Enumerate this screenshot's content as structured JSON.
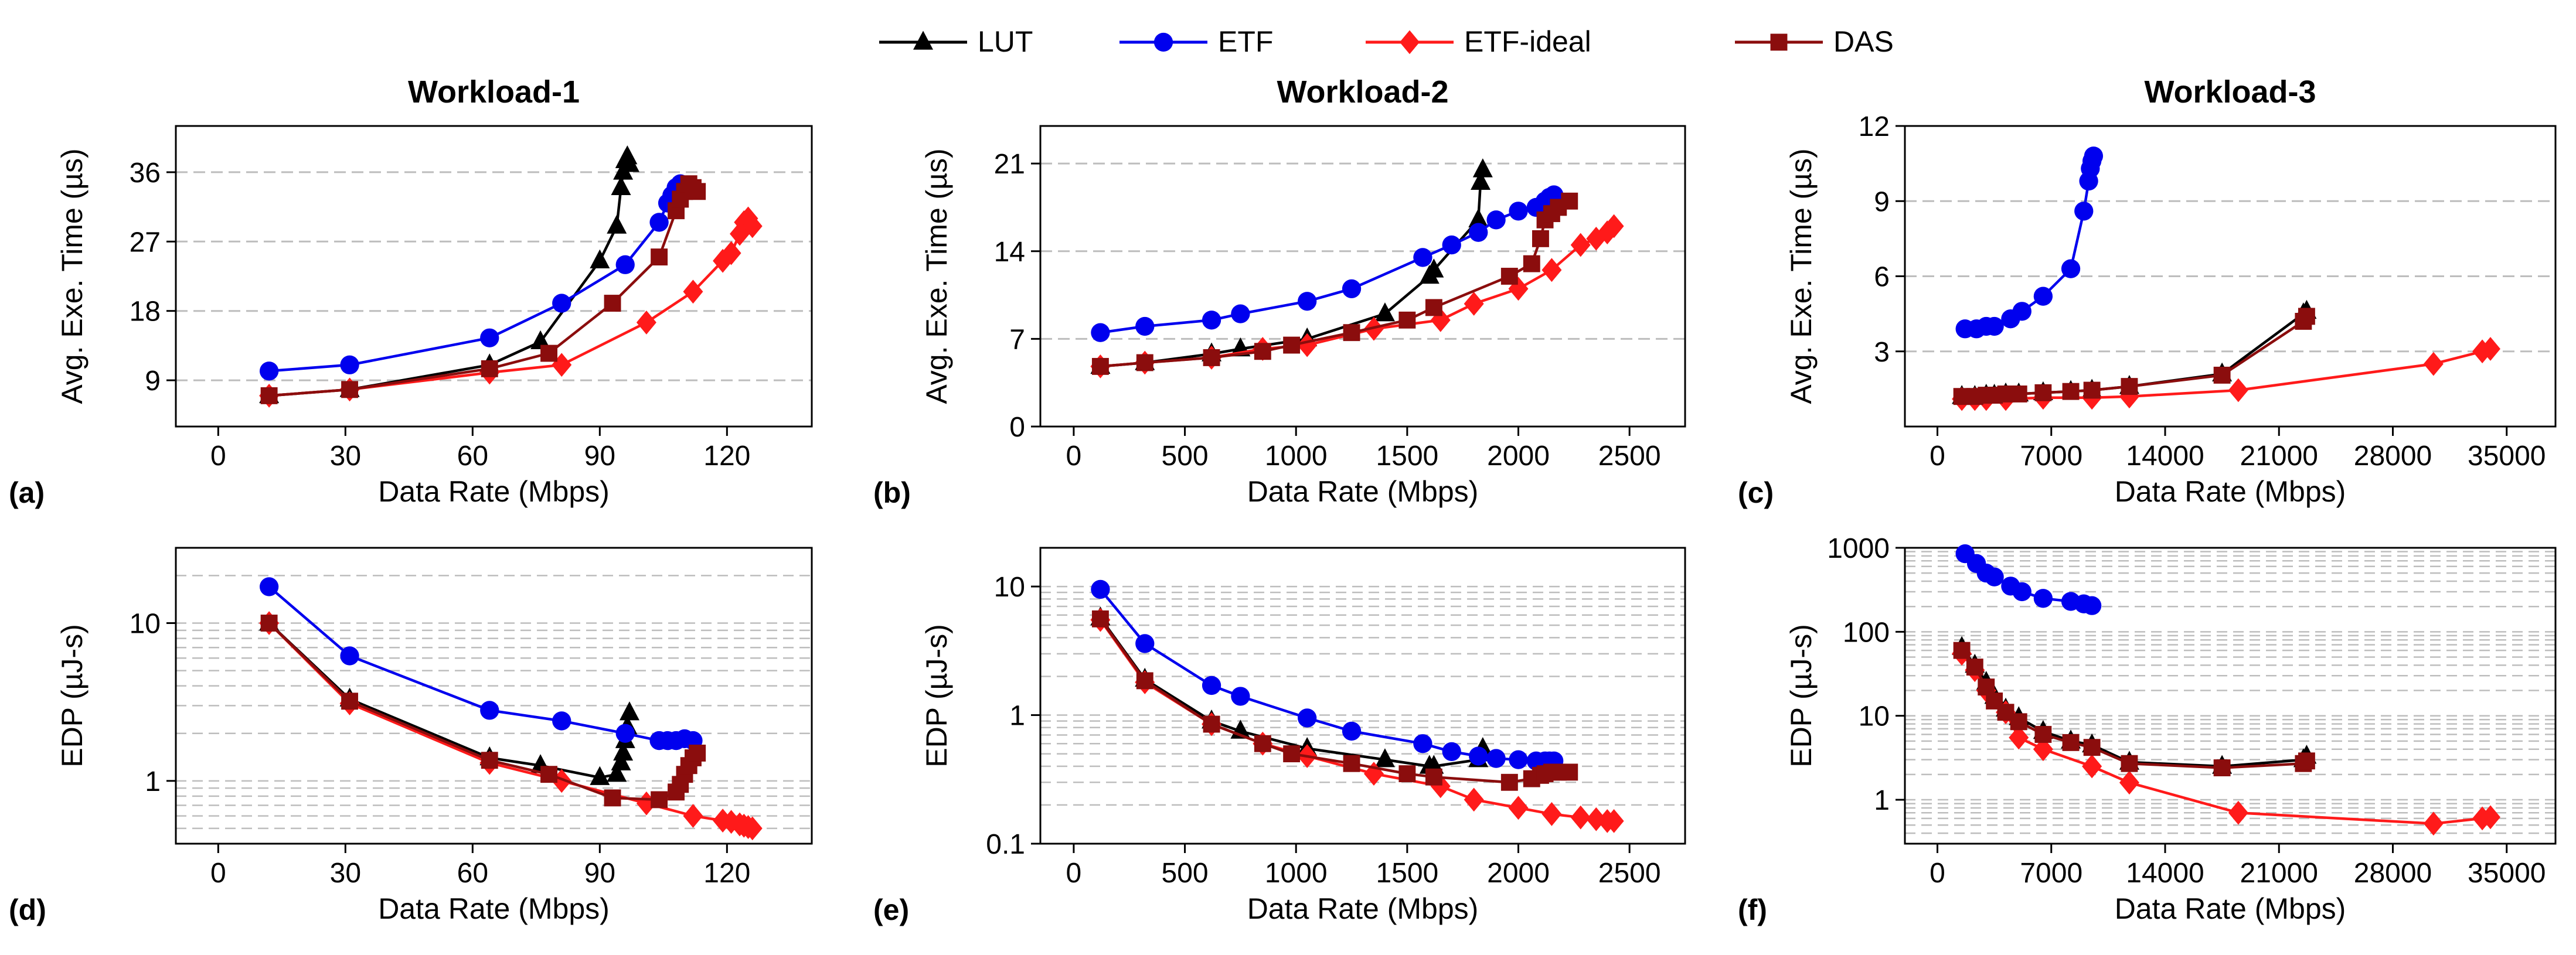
{
  "figure": {
    "legend": [
      {
        "name": "LUT",
        "color": "#000000",
        "marker": "triangle"
      },
      {
        "name": "ETF",
        "color": "#0000ee",
        "marker": "circle"
      },
      {
        "name": "ETF-ideal",
        "color": "#ff1a1a",
        "marker": "diamond"
      },
      {
        "name": "DAS",
        "color": "#8b0d0d",
        "marker": "square"
      }
    ],
    "column_titles": [
      "Workload-1",
      "Workload-2",
      "Workload-3"
    ],
    "panel_letters": [
      "(a)",
      "(b)",
      "(c)",
      "(d)",
      "(e)",
      "(f)"
    ]
  },
  "chart_data": [
    {
      "type": "line",
      "panel": "(a)",
      "title": "Workload-1",
      "xlabel": "Data Rate (Mbps)",
      "ylabel": "Avg. Exe. Time (µs)",
      "xlim": [
        -10,
        140
      ],
      "ylim": [
        3,
        42
      ],
      "yscale": "linear",
      "xticks": [
        0,
        30,
        60,
        90,
        120
      ],
      "yticks": [
        9,
        18,
        27,
        36
      ],
      "grid": "y-dashed",
      "series": [
        {
          "name": "LUT",
          "x": [
            12,
            31,
            64,
            76,
            90,
            94,
            95,
            95.5,
            96,
            96.5,
            97
          ],
          "y": [
            7,
            7.8,
            11,
            14,
            24.5,
            29,
            34,
            36,
            37.5,
            38,
            37
          ]
        },
        {
          "name": "ETF",
          "x": [
            12,
            31,
            64,
            81,
            96,
            104,
            106,
            107,
            108,
            109
          ],
          "y": [
            10.2,
            11,
            14.5,
            19,
            24,
            29.5,
            32,
            33,
            34,
            34.5
          ]
        },
        {
          "name": "ETF-ideal",
          "x": [
            12,
            31,
            64,
            81,
            101,
            112,
            119,
            121,
            123,
            124,
            125,
            126
          ],
          "y": [
            7,
            7.8,
            10,
            11,
            16.5,
            20.5,
            24.5,
            25.5,
            28,
            29.5,
            30,
            29
          ]
        },
        {
          "name": "DAS",
          "x": [
            12,
            31,
            64,
            78,
            93,
            104,
            108,
            109,
            110,
            111,
            112,
            113
          ],
          "y": [
            7,
            7.8,
            10.5,
            12.5,
            19,
            25,
            31,
            32.5,
            33.5,
            34.5,
            34,
            33.5
          ]
        }
      ]
    },
    {
      "type": "line",
      "panel": "(b)",
      "title": "Workload-2",
      "xlabel": "Data Rate (Mbps)",
      "ylabel": "Avg. Exe. Time (µs)",
      "xlim": [
        -150,
        2750
      ],
      "ylim": [
        0,
        24
      ],
      "yscale": "linear",
      "xticks": [
        0,
        500,
        1000,
        1500,
        2000,
        2500
      ],
      "yticks": [
        0,
        7,
        14,
        21
      ],
      "grid": "y-dashed",
      "series": [
        {
          "name": "LUT",
          "x": [
            120,
            320,
            620,
            750,
            1050,
            1400,
            1600,
            1620,
            1820,
            1830,
            1840
          ],
          "y": [
            4.8,
            5.1,
            5.8,
            6.2,
            7,
            9,
            12,
            12.5,
            16.5,
            19.5,
            20.5
          ]
        },
        {
          "name": "ETF",
          "x": [
            120,
            320,
            620,
            750,
            1050,
            1250,
            1570,
            1700,
            1820,
            1900,
            2000,
            2080,
            2120,
            2140,
            2160
          ],
          "y": [
            7.5,
            8,
            8.5,
            9,
            10,
            11,
            13.5,
            14.5,
            15.5,
            16.5,
            17.2,
            17.5,
            18,
            18.3,
            18.5
          ]
        },
        {
          "name": "ETF-ideal",
          "x": [
            120,
            320,
            620,
            850,
            1050,
            1350,
            1650,
            1800,
            2000,
            2150,
            2280,
            2350,
            2400,
            2430
          ],
          "y": [
            4.8,
            5.1,
            5.5,
            6.2,
            6.5,
            7.8,
            8.5,
            9.8,
            11,
            12.5,
            14.5,
            15,
            15.5,
            16
          ]
        },
        {
          "name": "DAS",
          "x": [
            120,
            320,
            620,
            850,
            980,
            1250,
            1500,
            1620,
            1960,
            2060,
            2100,
            2120,
            2150,
            2180,
            2230
          ],
          "y": [
            4.8,
            5.1,
            5.5,
            6,
            6.5,
            7.5,
            8.5,
            9.5,
            12,
            13,
            15,
            16.5,
            17,
            17.5,
            18
          ]
        }
      ]
    },
    {
      "type": "line",
      "panel": "(c)",
      "title": "Workload-3",
      "xlabel": "Data Rate (Mbps)",
      "ylabel": "Avg. Exe. Time (µs)",
      "xlim": [
        -2000,
        38000
      ],
      "ylim": [
        0,
        12
      ],
      "yscale": "linear",
      "xticks": [
        0,
        7000,
        14000,
        21000,
        28000,
        35000
      ],
      "yticks": [
        3,
        6,
        9,
        12
      ],
      "grid": "y-dashed",
      "series": [
        {
          "name": "LUT",
          "x": [
            1500,
            2300,
            3000,
            3500,
            4200,
            5000,
            6500,
            8200,
            9500,
            11800,
            17500,
            22500,
            22700
          ],
          "y": [
            1.2,
            1.2,
            1.25,
            1.25,
            1.3,
            1.3,
            1.35,
            1.4,
            1.45,
            1.6,
            2.1,
            4.5,
            4.6
          ]
        },
        {
          "name": "ETF",
          "x": [
            1700,
            2400,
            3000,
            3500,
            4500,
            5200,
            6500,
            8200,
            9000,
            9300,
            9400,
            9500,
            9600
          ],
          "y": [
            3.9,
            3.9,
            4.0,
            4.0,
            4.3,
            4.6,
            5.2,
            6.3,
            8.6,
            9.8,
            10.3,
            10.6,
            10.8
          ]
        },
        {
          "name": "ETF-ideal",
          "x": [
            1500,
            2300,
            3000,
            4200,
            6500,
            9500,
            11800,
            18500,
            30500,
            33500,
            34000
          ],
          "y": [
            1.1,
            1.1,
            1.1,
            1.1,
            1.15,
            1.15,
            1.2,
            1.45,
            2.5,
            3.0,
            3.1
          ]
        },
        {
          "name": "DAS",
          "x": [
            1500,
            2300,
            3000,
            3500,
            4200,
            5000,
            6500,
            8200,
            9500,
            11800,
            17500,
            22500,
            22700
          ],
          "y": [
            1.2,
            1.2,
            1.25,
            1.25,
            1.3,
            1.3,
            1.35,
            1.4,
            1.45,
            1.6,
            2.05,
            4.2,
            4.4
          ]
        }
      ]
    },
    {
      "type": "line",
      "panel": "(d)",
      "title": "",
      "xlabel": "Data Rate (Mbps)",
      "ylabel": "EDP (µJ-s)",
      "xlim": [
        -10,
        140
      ],
      "ylim": [
        0.4,
        30
      ],
      "yscale": "log",
      "xticks": [
        0,
        30,
        60,
        90,
        120
      ],
      "yticks": [
        1,
        10
      ],
      "ytick_labels": [
        "1",
        "10"
      ],
      "grid": "y-dashed-minor",
      "series": [
        {
          "name": "LUT",
          "x": [
            12,
            31,
            64,
            76,
            90,
            94,
            95,
            95.5,
            96,
            96.5,
            97
          ],
          "y": [
            10,
            3.3,
            1.4,
            1.25,
            1.05,
            1.1,
            1.3,
            1.5,
            1.8,
            2.2,
            2.7
          ]
        },
        {
          "name": "ETF",
          "x": [
            12,
            31,
            64,
            81,
            96,
            104,
            106,
            108,
            110,
            112
          ],
          "y": [
            17,
            6.2,
            2.8,
            2.4,
            2.0,
            1.8,
            1.8,
            1.8,
            1.85,
            1.8
          ]
        },
        {
          "name": "ETF-ideal",
          "x": [
            12,
            31,
            64,
            81,
            101,
            112,
            119,
            121,
            123,
            124,
            125,
            126
          ],
          "y": [
            10,
            3.1,
            1.3,
            1.0,
            0.72,
            0.6,
            0.56,
            0.55,
            0.53,
            0.52,
            0.51,
            0.5
          ]
        },
        {
          "name": "DAS",
          "x": [
            12,
            31,
            64,
            78,
            93,
            104,
            108,
            109,
            110,
            111,
            112,
            113
          ],
          "y": [
            10,
            3.2,
            1.35,
            1.1,
            0.78,
            0.76,
            0.85,
            0.95,
            1.1,
            1.25,
            1.4,
            1.5
          ]
        }
      ]
    },
    {
      "type": "line",
      "panel": "(e)",
      "title": "",
      "xlabel": "Data Rate (Mbps)",
      "ylabel": "EDP (µJ-s)",
      "xlim": [
        -150,
        2750
      ],
      "ylim": [
        0.1,
        20
      ],
      "yscale": "log",
      "xticks": [
        0,
        500,
        1000,
        1500,
        2000,
        2500
      ],
      "yticks": [
        0.1,
        1,
        10
      ],
      "ytick_labels": [
        "0.1",
        "1",
        "10"
      ],
      "grid": "y-dashed-minor",
      "series": [
        {
          "name": "LUT",
          "x": [
            120,
            320,
            620,
            750,
            1050,
            1400,
            1600,
            1620,
            1820,
            1830,
            1840
          ],
          "y": [
            5.7,
            1.9,
            0.9,
            0.75,
            0.55,
            0.45,
            0.4,
            0.4,
            0.45,
            0.5,
            0.55
          ]
        },
        {
          "name": "ETF",
          "x": [
            120,
            320,
            620,
            750,
            1050,
            1250,
            1570,
            1700,
            1820,
            1900,
            2000,
            2080,
            2120,
            2140,
            2160
          ],
          "y": [
            9.5,
            3.6,
            1.7,
            1.4,
            0.95,
            0.75,
            0.6,
            0.52,
            0.48,
            0.46,
            0.45,
            0.44,
            0.44,
            0.44,
            0.44
          ]
        },
        {
          "name": "ETF-ideal",
          "x": [
            120,
            320,
            620,
            850,
            1050,
            1350,
            1650,
            1800,
            2000,
            2150,
            2280,
            2350,
            2400,
            2430
          ],
          "y": [
            5.5,
            1.8,
            0.85,
            0.6,
            0.48,
            0.35,
            0.28,
            0.22,
            0.19,
            0.17,
            0.16,
            0.155,
            0.15,
            0.15
          ]
        },
        {
          "name": "DAS",
          "x": [
            120,
            320,
            620,
            850,
            980,
            1250,
            1500,
            1620,
            1960,
            2060,
            2100,
            2120,
            2150,
            2180,
            2230
          ],
          "y": [
            5.6,
            1.85,
            0.85,
            0.6,
            0.5,
            0.42,
            0.35,
            0.33,
            0.3,
            0.32,
            0.34,
            0.35,
            0.36,
            0.36,
            0.36
          ]
        }
      ]
    },
    {
      "type": "line",
      "panel": "(f)",
      "title": "",
      "xlabel": "Data Rate (Mbps)",
      "ylabel": "EDP (µJ-s)",
      "xlim": [
        -2000,
        38000
      ],
      "ylim": [
        0.3,
        1000
      ],
      "yscale": "log",
      "xticks": [
        0,
        7000,
        14000,
        21000,
        28000,
        35000
      ],
      "yticks": [
        1,
        10,
        100,
        1000
      ],
      "ytick_labels": [
        "1",
        "10",
        "100",
        "1000"
      ],
      "grid": "y-dashed-minor",
      "series": [
        {
          "name": "LUT",
          "x": [
            1500,
            2300,
            3000,
            3500,
            4200,
            5000,
            6500,
            8200,
            9500,
            11800,
            17500,
            22500,
            22700
          ],
          "y": [
            65,
            40,
            25,
            17,
            12,
            9.5,
            6.5,
            5.0,
            4.5,
            2.8,
            2.5,
            3.0,
            3.3
          ]
        },
        {
          "name": "ETF",
          "x": [
            1700,
            2400,
            3000,
            3500,
            4500,
            5200,
            6500,
            8200,
            9000,
            9500
          ],
          "y": [
            850,
            650,
            500,
            450,
            350,
            300,
            250,
            230,
            215,
            205
          ]
        },
        {
          "name": "ETF-ideal",
          "x": [
            1500,
            2300,
            3000,
            4200,
            5000,
            6500,
            9500,
            11800,
            18500,
            30500,
            33500,
            34000
          ],
          "y": [
            55,
            35,
            20,
            11,
            5.5,
            4.0,
            2.5,
            1.6,
            0.7,
            0.52,
            0.6,
            0.62
          ]
        },
        {
          "name": "DAS",
          "x": [
            1500,
            2300,
            3000,
            3500,
            4200,
            5000,
            6500,
            8200,
            9500,
            11800,
            17500,
            22500,
            22700
          ],
          "y": [
            60,
            38,
            22,
            15,
            11,
            8.5,
            6.0,
            4.8,
            4.2,
            2.7,
            2.4,
            2.7,
            2.9
          ]
        }
      ]
    }
  ]
}
